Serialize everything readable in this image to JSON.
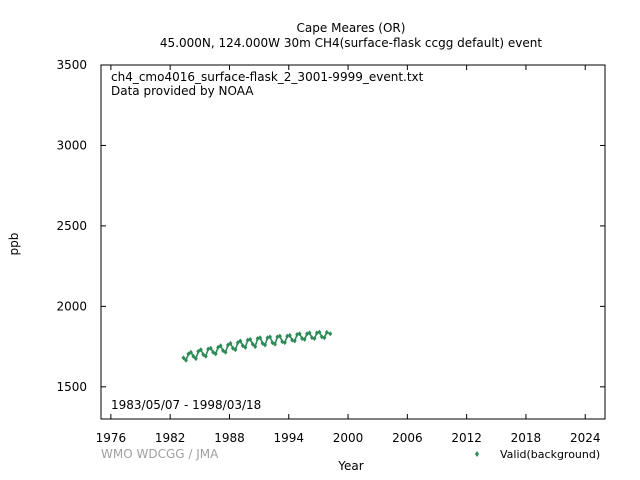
{
  "title_line1": "Cape Meares (OR)",
  "title_line2": "45.000N, 124.000W 30m    CH4(surface-flask ccgg default) event",
  "file_label": "ch4_cmo4016_surface-flask_2_3001-9999_event.txt",
  "provider_label": "Data provided by NOAA",
  "date_range": "1983/05/07 - 1998/03/18",
  "credit": "WMO WDCGG / JMA",
  "colors": {
    "series": "#2e8b57",
    "axis": "#000000",
    "credit": "#a0a0a0"
  },
  "chart_data": {
    "type": "scatter",
    "xlabel": "Year",
    "ylabel": "ppb",
    "xlim": [
      1975,
      2026
    ],
    "ylim": [
      1300,
      3500
    ],
    "x_ticks": [
      1976,
      1982,
      1988,
      1994,
      2000,
      2006,
      2012,
      2018,
      2024
    ],
    "y_ticks": [
      1500,
      2000,
      2500,
      3000,
      3500
    ],
    "grid": false,
    "legend_position": "bottom-right",
    "series": [
      {
        "name": "Valid(background)",
        "marker": "diamond",
        "color": "#2e8b57",
        "x": [
          1983.35,
          1983.6,
          1983.85,
          1984.1,
          1984.35,
          1984.6,
          1984.85,
          1985.1,
          1985.35,
          1985.6,
          1985.85,
          1986.1,
          1986.35,
          1986.6,
          1986.85,
          1987.1,
          1987.35,
          1987.6,
          1987.85,
          1988.1,
          1988.35,
          1988.6,
          1988.85,
          1989.1,
          1989.35,
          1989.6,
          1989.85,
          1990.1,
          1990.35,
          1990.6,
          1990.85,
          1991.1,
          1991.35,
          1991.6,
          1991.85,
          1992.1,
          1992.35,
          1992.6,
          1992.85,
          1993.1,
          1993.35,
          1993.6,
          1993.85,
          1994.1,
          1994.35,
          1994.6,
          1994.85,
          1995.1,
          1995.35,
          1995.6,
          1995.85,
          1996.1,
          1996.35,
          1996.6,
          1996.85,
          1997.1,
          1997.35,
          1997.6,
          1997.85,
          1998.2
        ],
        "y": [
          1680,
          1665,
          1705,
          1715,
          1690,
          1675,
          1720,
          1730,
          1700,
          1690,
          1735,
          1740,
          1715,
          1705,
          1745,
          1755,
          1725,
          1715,
          1760,
          1770,
          1740,
          1730,
          1775,
          1785,
          1755,
          1745,
          1790,
          1795,
          1765,
          1750,
          1800,
          1805,
          1770,
          1760,
          1805,
          1810,
          1775,
          1765,
          1810,
          1815,
          1780,
          1775,
          1815,
          1820,
          1790,
          1785,
          1825,
          1830,
          1800,
          1795,
          1830,
          1835,
          1805,
          1800,
          1835,
          1840,
          1810,
          1805,
          1838,
          1830
        ]
      }
    ]
  }
}
